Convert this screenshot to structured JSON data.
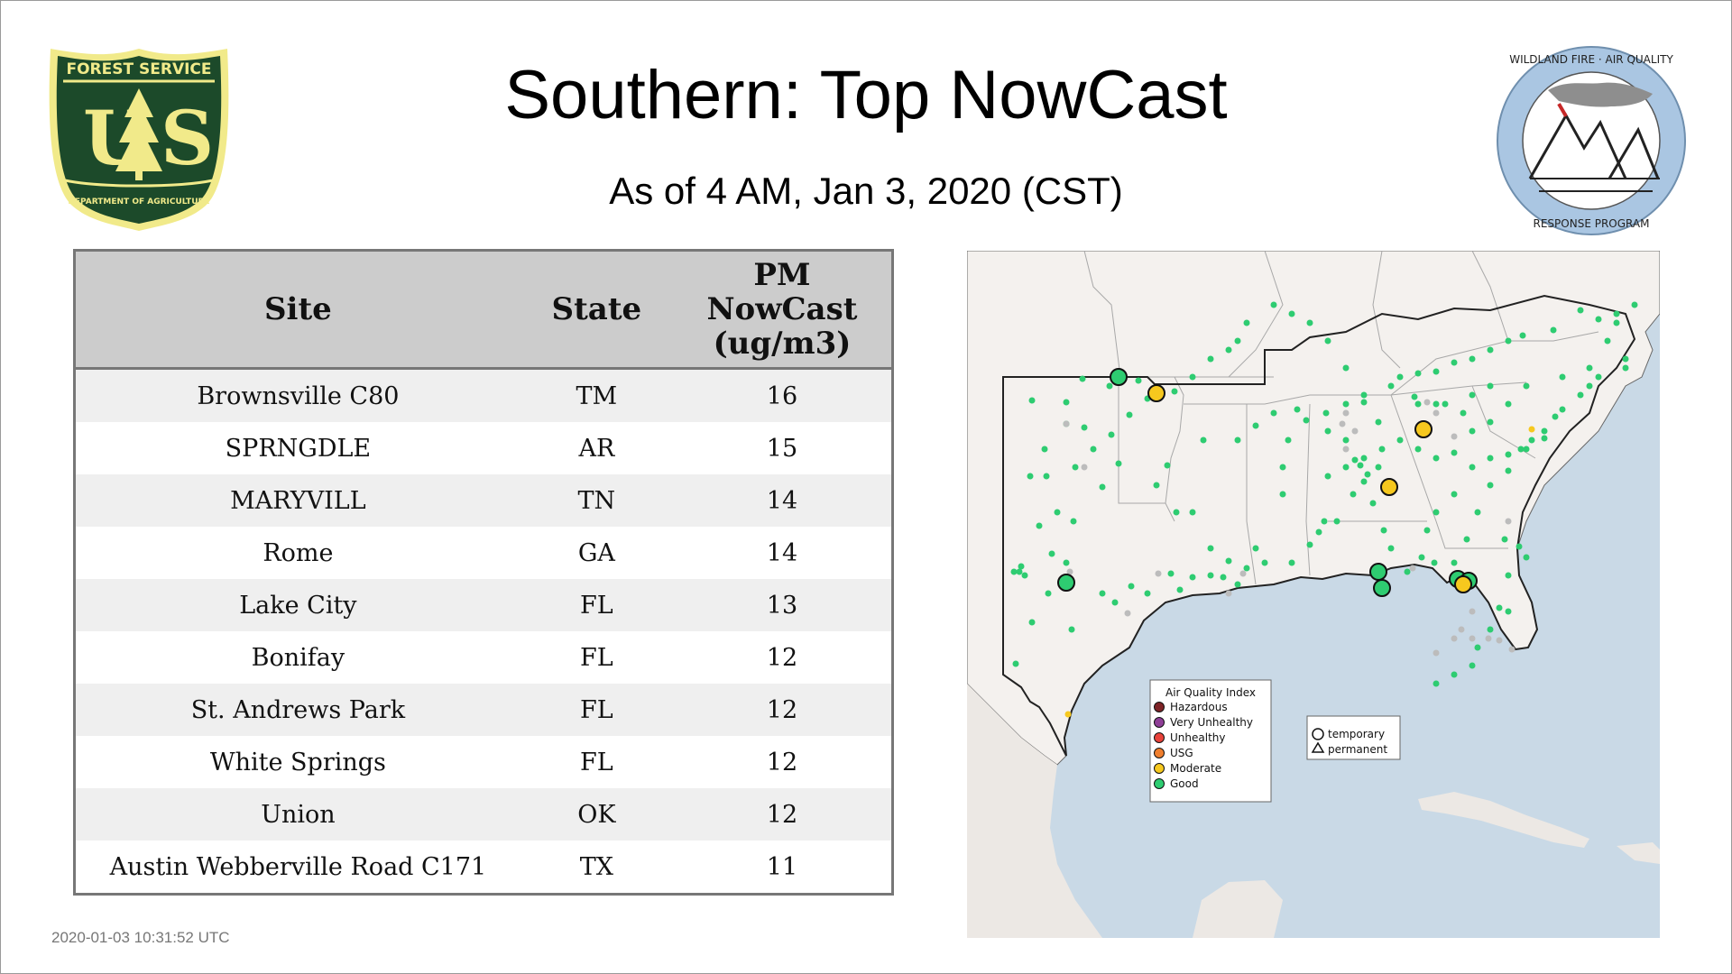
{
  "header": {
    "title": "Southern: Top NowCast",
    "subtitle": "As of  4 AM, Jan  3, 2020 (CST)"
  },
  "logos": {
    "forest_service": {
      "top_text": "FOREST SERVICE",
      "letters": "US",
      "bottom_text": "DEPARTMENT OF AGRICULTURE"
    },
    "wildland": {
      "top_text": "WILDLAND FIRE · AIR QUALITY",
      "bottom_text": "RESPONSE PROGRAM"
    }
  },
  "table": {
    "headers": {
      "site": "Site",
      "state": "State",
      "pm_line1": "PM",
      "pm_line2": "NowCast",
      "pm_line3": "(ug/m3)"
    },
    "rows": [
      {
        "site": "Brownsville C80",
        "state": "TM",
        "pm": "16"
      },
      {
        "site": "SPRNGDLE",
        "state": "AR",
        "pm": "15"
      },
      {
        "site": "MARYVILL",
        "state": "TN",
        "pm": "14"
      },
      {
        "site": "Rome",
        "state": "GA",
        "pm": "14"
      },
      {
        "site": "Lake City",
        "state": "FL",
        "pm": "13"
      },
      {
        "site": "Bonifay",
        "state": "FL",
        "pm": "12"
      },
      {
        "site": "St. Andrews Park",
        "state": "FL",
        "pm": "12"
      },
      {
        "site": "White Springs",
        "state": "FL",
        "pm": "12"
      },
      {
        "site": "Union",
        "state": "OK",
        "pm": "12"
      },
      {
        "site": "Austin Webberville Road C171",
        "state": "TX",
        "pm": "11"
      }
    ]
  },
  "map": {
    "legend": {
      "title": "Air Quality Index",
      "items": [
        {
          "label": "Hazardous",
          "color": "#7e2326"
        },
        {
          "label": "Very Unhealthy",
          "color": "#8f3f97"
        },
        {
          "label": "Unhealthy",
          "color": "#e8423a"
        },
        {
          "label": "USG",
          "color": "#f07f2e"
        },
        {
          "label": "Moderate",
          "color": "#f6c81e"
        },
        {
          "label": "Good",
          "color": "#2ecc71"
        }
      ]
    },
    "shape_legend": {
      "temporary": "temporary",
      "permanent": "permanent"
    },
    "colors": {
      "water": "#c9d9e6",
      "land": "#f4f1ee",
      "good": "#2ecc71",
      "moderate": "#f6c81e",
      "inactive": "#bcbcbc"
    }
  },
  "footer": {
    "timestamp": "2020-01-03 10:31:52 UTC"
  }
}
